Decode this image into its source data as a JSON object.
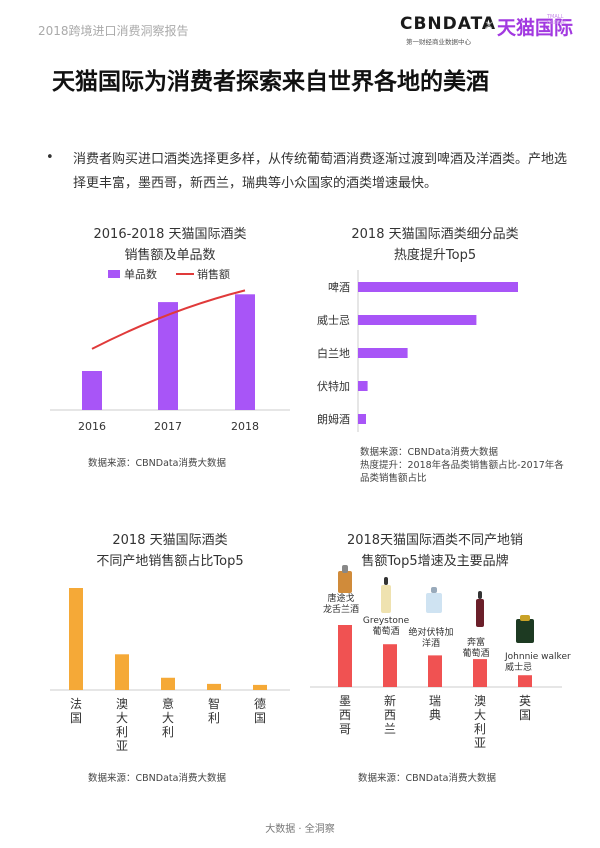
{
  "header": {
    "left_text": "2018跨境进口消费洞察报告",
    "logo_cbn": "CBNDATA",
    "logo_cbn_sub": "第一财经商业数据中心",
    "logo_sep": "×",
    "logo_tmall": "天猫国际",
    "logo_tmall_sub": "TMALL GLOBAL"
  },
  "title": "天猫国际为消费者探索来自世界各地的美酒",
  "bullet": {
    "marker": "•",
    "text": "消费者购买进口酒类选择更多样，从传统葡萄酒消费逐渐过渡到啤酒及洋酒类。产地选择更丰富，墨西哥，新西兰，瑞典等小众国家的酒类增速最快。"
  },
  "chart_data": [
    {
      "type": "bar+line",
      "title_line1": "2016-2018 天猫国际酒类",
      "title_line2": "销售额及单品数",
      "legend": [
        "单品数",
        "销售额"
      ],
      "legend_position": "top",
      "categories": [
        "2016",
        "2017",
        "2018"
      ],
      "series": [
        {
          "name": "单品数",
          "kind": "bar",
          "values": [
            0.3,
            0.83,
            0.89
          ],
          "color": "#a855f7"
        },
        {
          "name": "销售额",
          "kind": "line",
          "values": [
            0.47,
            0.77,
            0.92
          ],
          "color": "#e03a3a"
        }
      ],
      "ylim": [
        0,
        1
      ],
      "source": "数据来源：CBNData消费大数据"
    },
    {
      "type": "hbar",
      "title_line1": "2018 天猫国际酒类细分品类",
      "title_line2": "热度提升Top5",
      "categories": [
        "啤酒",
        "威士忌",
        "白兰地",
        "伏特加",
        "朗姆酒"
      ],
      "values": [
        1.0,
        0.74,
        0.31,
        0.06,
        0.05
      ],
      "color": "#a855f7",
      "xlim": [
        0,
        1
      ],
      "source": "数据来源：CBNData消费大数据",
      "note": "热度提升：2018年各品类销售额占比-2017年各品类销售额占比"
    },
    {
      "type": "bar",
      "title_line1": "2018 天猫国际酒类",
      "title_line2": "不同产地销售额占比Top5",
      "categories": [
        "法国",
        "澳大利亚",
        "意大利",
        "智利",
        "德国"
      ],
      "values": [
        1.0,
        0.35,
        0.12,
        0.06,
        0.05
      ],
      "color": "#f5a937",
      "ylim": [
        0,
        1
      ],
      "source": "数据来源：CBNData消费大数据"
    },
    {
      "type": "bar",
      "title_line1": "2018天猫国际酒类不同产地销",
      "title_line2": "售额Top5增速及主要品牌",
      "categories": [
        "墨西哥",
        "新西兰",
        "瑞典",
        "澳大利亚",
        "英国"
      ],
      "values": [
        1.0,
        0.69,
        0.51,
        0.45,
        0.19
      ],
      "brands": [
        "唐途戈\n龙舌兰酒",
        "Greystone\n葡萄酒",
        "绝对伏特加\n洋酒",
        "奔富\n葡萄酒",
        "Johnnie walker\n威士忌"
      ],
      "color": "#f05252",
      "ylim": [
        0,
        1
      ],
      "source": "数据来源：CBNData消费大数据"
    }
  ],
  "footer": "大数据 · 全洞察"
}
